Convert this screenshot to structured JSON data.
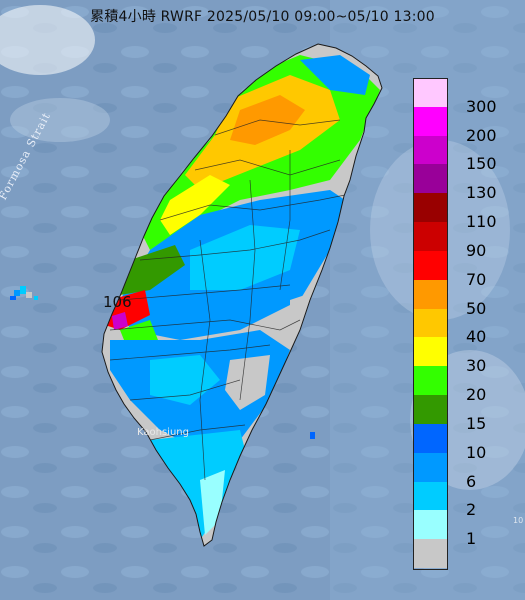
{
  "title": "累積4小時 RWRF 2025/05/10 09:00~05/10 13:00",
  "strait_label": "Formosa Strait",
  "city_label": "Kaohsiung",
  "max_value_label": "106",
  "corner_label": "10",
  "legend": {
    "labels": [
      "300",
      "200",
      "150",
      "130",
      "110",
      "90",
      "70",
      "50",
      "40",
      "30",
      "20",
      "15",
      "10",
      "6",
      "2",
      "1"
    ],
    "colors": [
      "#ffc8ff",
      "#ff00ff",
      "#cc00cc",
      "#990099",
      "#990000",
      "#cc0000",
      "#ff0000",
      "#ff9900",
      "#ffc800",
      "#ffff00",
      "#33ff00",
      "#339900",
      "#0066ff",
      "#0099ff",
      "#00ccff",
      "#99ffff",
      "#c8c8c8"
    ]
  }
}
